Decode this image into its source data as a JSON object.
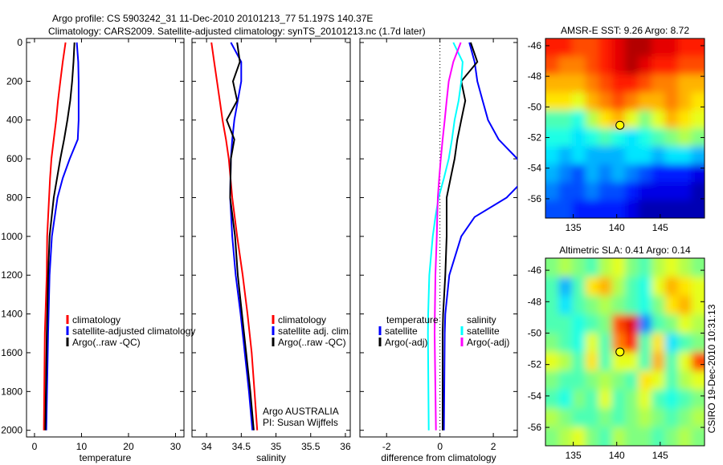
{
  "title_line1": "Argo profile: CS 5903242_31 11-Dec-2010 20101213_77 51.197S 140.37E",
  "title_line2": "Climatology: CARS2009. Satellite-adjusted climatology: synTS_20101213.nc (1.7d later)",
  "colors": {
    "climatology": "#ff0000",
    "satellite": "#0000ff",
    "argo": "#000000",
    "sal_satellite": "#00ffff",
    "sal_argo": "#ff00ff"
  },
  "chart_data": [
    {
      "type": "line",
      "xlabel": "temperature",
      "ylabel": "",
      "xlim": [
        -1.7,
        31.8
      ],
      "ylim": [
        0,
        2055
      ],
      "xticks": [
        "0",
        "10",
        "20",
        "30"
      ],
      "yticks": [
        "0",
        "200",
        "400",
        "600",
        "800",
        "1000",
        "1200",
        "1400",
        "1600",
        "1800",
        "2000"
      ],
      "depth": [
        0,
        100,
        200,
        300,
        400,
        500,
        600,
        700,
        800,
        1000,
        1200,
        1500,
        2000
      ],
      "series": [
        {
          "name": "climatology",
          "color": "#ff0000",
          "values": [
            6.6,
            6.0,
            5.5,
            5.0,
            4.6,
            4.1,
            3.6,
            3.3,
            3.1,
            2.7,
            2.6,
            2.2,
            2.0
          ]
        },
        {
          "name": "satellite-adjusted climatology",
          "color": "#0000ff",
          "values": [
            9.0,
            9.3,
            9.4,
            9.4,
            9.4,
            9.2,
            7.5,
            6.0,
            4.9,
            3.7,
            3.2,
            2.9,
            2.5
          ]
        },
        {
          "name": "Argo(..raw -QC)",
          "color": "#000000",
          "values": [
            8.5,
            8.3,
            8.0,
            7.6,
            7.0,
            6.3,
            5.5,
            4.8,
            4.1,
            3.2,
            2.9,
            2.6,
            2.3
          ]
        }
      ],
      "legend": [
        "climatology",
        "satellite-adjusted climatology",
        "Argo(..raw -QC)"
      ]
    },
    {
      "type": "line",
      "xlabel": "salinity",
      "xlim": [
        33.79,
        36.07
      ],
      "ylim": [
        0,
        2055
      ],
      "xticks": [
        "34",
        "34.5",
        "35",
        "35.5",
        "36"
      ],
      "depth": [
        0,
        100,
        200,
        300,
        400,
        500,
        600,
        800,
        1000,
        1200,
        1400,
        1600,
        1800,
        2000
      ],
      "series": [
        {
          "name": "climatology",
          "color": "#ff0000",
          "values": [
            34.07,
            34.11,
            34.15,
            34.19,
            34.23,
            34.28,
            34.32,
            34.37,
            34.44,
            34.52,
            34.59,
            34.65,
            34.69,
            34.73
          ]
        },
        {
          "name": "satellite adj. clim.",
          "color": "#0000ff",
          "values": [
            34.35,
            34.5,
            34.5,
            34.45,
            34.4,
            34.37,
            34.35,
            34.34,
            34.37,
            34.42,
            34.49,
            34.55,
            34.61,
            34.66
          ]
        },
        {
          "name": "Argo(..raw -QC)",
          "color": "#000000",
          "values": [
            34.44,
            34.48,
            34.38,
            34.44,
            34.29,
            34.4,
            34.35,
            34.34,
            34.41,
            34.45,
            34.51,
            34.57,
            34.63,
            34.68
          ]
        }
      ],
      "legend": [
        "climatology",
        "satellite adj. clim.",
        "Argo(..raw -QC)"
      ],
      "annotation": [
        "Argo AUSTRALIA",
        "PI: Susan Wijffels"
      ]
    },
    {
      "type": "line",
      "xlabel": "difference from climatology",
      "xlim": [
        -3.0,
        2.9
      ],
      "ylim": [
        0,
        2055
      ],
      "xticks": [
        "-2",
        "0",
        "2"
      ],
      "depth": [
        0,
        100,
        200,
        300,
        400,
        500,
        600,
        700,
        800,
        900,
        1000,
        1200,
        1400,
        1500,
        2000
      ],
      "series": [
        {
          "name": "temperature satellite",
          "color": "#0000ff",
          "values": [
            1.1,
            1.3,
            1.4,
            1.6,
            1.8,
            2.2,
            2.9,
            3.2,
            2.5,
            1.3,
            0.8,
            0.35,
            0.2,
            0.18,
            0.15
          ]
        },
        {
          "name": "temperature Argo(-adj)",
          "color": "#000000",
          "values": [
            1.15,
            1.4,
            0.8,
            0.95,
            0.8,
            0.65,
            0.55,
            0.4,
            0.25,
            0.25,
            0.25,
            0.2,
            0.12,
            0.1,
            0.1
          ]
        },
        {
          "name": "salinity satellite",
          "color": "#00ffff",
          "values": [
            0.5,
            0.85,
            0.8,
            0.7,
            0.55,
            0.45,
            0.33,
            0.15,
            -0.05,
            -0.17,
            -0.27,
            -0.4,
            -0.44,
            -0.45,
            -0.42
          ]
        },
        {
          "name": "salinity Argo(-adj)",
          "color": "#ff00ff",
          "values": [
            0.78,
            0.5,
            0.33,
            0.25,
            0.18,
            0.1,
            0.03,
            -0.03,
            -0.08,
            -0.1,
            -0.12,
            -0.17,
            -0.19,
            -0.2,
            -0.15
          ]
        }
      ],
      "legend_headers": [
        "temperature",
        "salinity"
      ],
      "legend": [
        "satellite",
        "Argo(-adj)",
        "satellite",
        "Argo(-adj)"
      ]
    },
    {
      "type": "heatmap",
      "title": "AMSR-E SST: 9.26 Argo: 8.72",
      "lon_range": [
        131.8,
        150.1
      ],
      "lat_range": [
        -45.53,
        -57.26
      ],
      "xticks": [
        "135",
        "140",
        "145"
      ],
      "yticks": [
        "-46",
        "-48",
        "-50",
        "-52",
        "-54",
        "-56"
      ],
      "marker": {
        "lon": 140.37,
        "lat": -51.197
      },
      "grid": [
        [
          0.85,
          0.85,
          0.8,
          0.8,
          0.85,
          0.9,
          0.95,
          0.95,
          0.9,
          0.9,
          0.85,
          0.85
        ],
        [
          0.8,
          0.75,
          0.75,
          0.8,
          0.85,
          0.9,
          0.95,
          0.9,
          0.85,
          0.85,
          0.8,
          0.8
        ],
        [
          0.7,
          0.7,
          0.7,
          0.75,
          0.8,
          0.85,
          0.85,
          0.8,
          0.75,
          0.75,
          0.7,
          0.7
        ],
        [
          0.65,
          0.65,
          0.6,
          0.7,
          0.75,
          0.8,
          0.75,
          0.7,
          0.7,
          0.75,
          0.7,
          0.65
        ],
        [
          0.45,
          0.45,
          0.4,
          0.55,
          0.65,
          0.7,
          0.6,
          0.5,
          0.6,
          0.7,
          0.65,
          0.6
        ],
        [
          0.4,
          0.4,
          0.35,
          0.4,
          0.45,
          0.4,
          0.35,
          0.4,
          0.45,
          0.5,
          0.55,
          0.5
        ],
        [
          0.35,
          0.3,
          0.35,
          0.3,
          0.3,
          0.3,
          0.35,
          0.35,
          0.3,
          0.35,
          0.35,
          0.3
        ],
        [
          0.3,
          0.25,
          0.2,
          0.3,
          0.25,
          0.3,
          0.25,
          0.2,
          0.15,
          0.15,
          0.15,
          0.1
        ],
        [
          0.25,
          0.2,
          0.2,
          0.25,
          0.2,
          0.2,
          0.15,
          0.1,
          0.1,
          0.1,
          0.1,
          0.05
        ],
        [
          0.2,
          0.2,
          0.15,
          0.15,
          0.15,
          0.15,
          0.1,
          0.05,
          0.05,
          0.05,
          0.05,
          0.05
        ]
      ]
    },
    {
      "type": "heatmap",
      "title": "Altimetric SLA: 0.41 Argo: 0.14",
      "lon_range": [
        131.8,
        150.1
      ],
      "lat_range": [
        -45.23,
        -57.17
      ],
      "xticks": [
        "135",
        "140",
        "145"
      ],
      "yticks": [
        "-46",
        "-48",
        "-50",
        "-52",
        "-54",
        "-56"
      ],
      "marker": {
        "lon": 140.37,
        "lat": -51.197
      },
      "grid": [
        [
          0.5,
          0.55,
          0.5,
          0.45,
          0.55,
          0.6,
          0.5,
          0.45,
          0.55,
          0.6,
          0.55,
          0.5
        ],
        [
          0.45,
          0.3,
          0.45,
          0.65,
          0.7,
          0.55,
          0.45,
          0.4,
          0.6,
          0.7,
          0.65,
          0.6
        ],
        [
          0.45,
          0.35,
          0.45,
          0.5,
          0.55,
          0.5,
          0.45,
          0.4,
          0.5,
          0.65,
          0.7,
          0.6
        ],
        [
          0.45,
          0.45,
          0.4,
          0.45,
          0.5,
          0.8,
          0.9,
          0.25,
          0.45,
          0.5,
          0.6,
          0.55
        ],
        [
          0.5,
          0.45,
          0.4,
          0.6,
          0.45,
          0.75,
          0.85,
          0.45,
          0.65,
          0.35,
          0.45,
          0.5
        ],
        [
          0.6,
          0.55,
          0.45,
          0.65,
          0.45,
          0.6,
          0.6,
          0.45,
          0.7,
          0.45,
          0.6,
          0.8
        ],
        [
          0.5,
          0.45,
          0.45,
          0.5,
          0.55,
          0.5,
          0.45,
          0.65,
          0.6,
          0.45,
          0.55,
          0.6
        ],
        [
          0.45,
          0.4,
          0.5,
          0.45,
          0.6,
          0.45,
          0.5,
          0.6,
          0.45,
          0.4,
          0.45,
          0.5
        ],
        [
          0.55,
          0.5,
          0.45,
          0.45,
          0.5,
          0.45,
          0.5,
          0.55,
          0.5,
          0.45,
          0.5,
          0.55
        ],
        [
          0.5,
          0.55,
          0.6,
          0.5,
          0.45,
          0.55,
          0.5,
          0.5,
          0.45,
          0.5,
          0.55,
          0.5
        ]
      ]
    }
  ],
  "footer_stamp": "CSIRO 19-Dec-2010 10:31:13"
}
